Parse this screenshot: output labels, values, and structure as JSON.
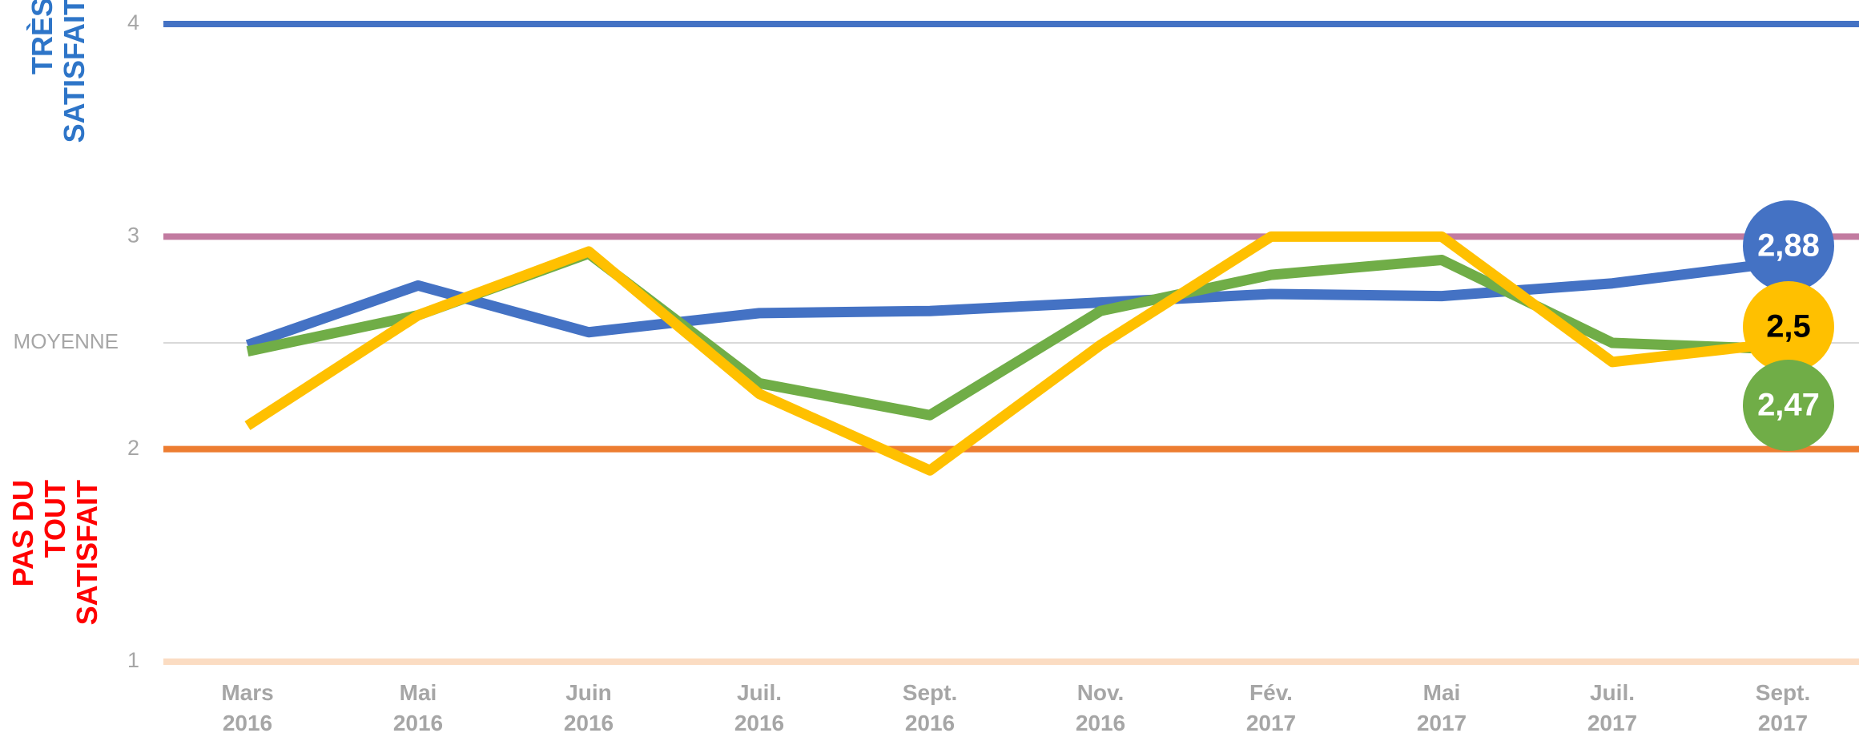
{
  "chart_data": {
    "type": "line",
    "side_labels": {
      "top": "TRÈS\nSATISFAIT",
      "bottom": "PAS DU TOUT\nSATISFAIT",
      "top_color": "#2e75c8",
      "bottom_color": "#ff0000"
    },
    "categories": [
      "Mars\n2016",
      "Mai\n2016",
      "Juin\n2016",
      "Juil.\n2016",
      "Sept.\n2016",
      "Nov.\n2016",
      "Fév.\n2017",
      "Mai\n2017",
      "Juil.\n2017",
      "Sept.\n2017"
    ],
    "ylim": [
      1,
      4
    ],
    "yticks": [
      1,
      2,
      {
        "value": 2.5,
        "label": "MOYENNE"
      },
      3,
      4
    ],
    "tick_line_colors": [
      "#fbdcc2",
      "#ed7d31",
      "#d9d9d9",
      "#c27ba0",
      "#4472c4"
    ],
    "series": [
      {
        "color": "#4472c4",
        "label_text_color": "#ffffff",
        "values": [
          2.49,
          2.77,
          2.55,
          2.64,
          2.65,
          2.69,
          2.73,
          2.72,
          2.78,
          2.88
        ],
        "value_labels": [
          null,
          null,
          null,
          null,
          null,
          null,
          null,
          null,
          null,
          "2,88"
        ]
      },
      {
        "color": "#70ad47",
        "label_text_color": "#ffffff",
        "values": [
          2.46,
          2.63,
          2.92,
          2.31,
          2.16,
          2.65,
          2.82,
          2.89,
          2.5,
          2.47
        ],
        "value_labels": [
          null,
          null,
          null,
          null,
          null,
          null,
          null,
          null,
          null,
          "2,47"
        ]
      },
      {
        "color": "#ffc000",
        "label_text_color": "#000000",
        "values": [
          2.11,
          2.63,
          2.93,
          2.26,
          1.9,
          2.49,
          3.0,
          3.0,
          2.41,
          2.5
        ],
        "value_labels": [
          null,
          null,
          null,
          null,
          null,
          null,
          null,
          null,
          null,
          "2,5"
        ]
      }
    ]
  }
}
